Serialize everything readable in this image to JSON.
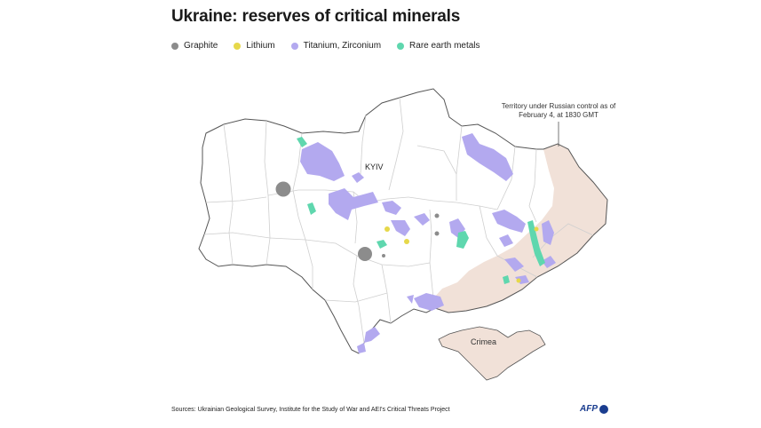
{
  "title": "Ukraine: reserves of critical minerals",
  "legend": [
    {
      "label": "Graphite",
      "color": "#8c8c8c"
    },
    {
      "label": "Lithium",
      "color": "#e6d84a"
    },
    {
      "label": "Titanium, Zirconium",
      "color": "#b3a9ef"
    },
    {
      "label": "Rare earth metals",
      "color": "#5fd7ae"
    }
  ],
  "colors": {
    "occupied_territory": "#f1e1d8",
    "border": "#555555",
    "region_lines": "#c9c9c9"
  },
  "map": {
    "city_label": "KYIV",
    "region_label": "Crimea",
    "note": "Territory under Russian control as of February 4, at 1830 GMT"
  },
  "footer": {
    "sources": "Sources: Ukrainian Geological Survey, Institute for the Study of War and AEI's Critical Threats Project",
    "logo": "AFP"
  }
}
